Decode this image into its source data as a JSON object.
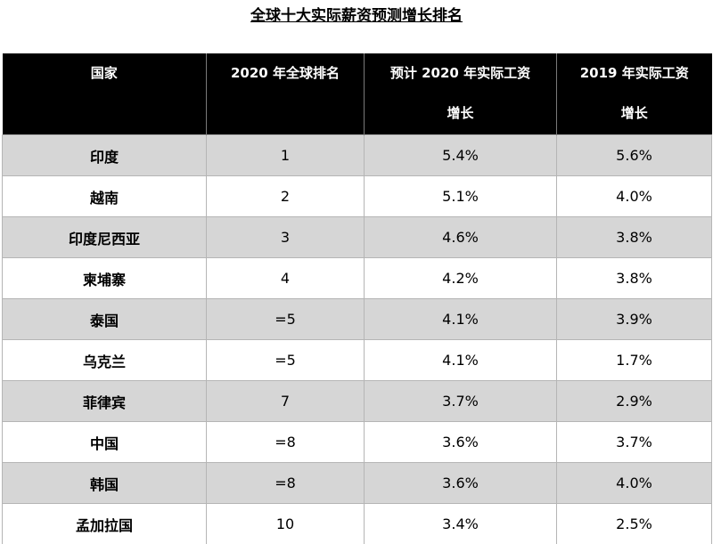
{
  "title": "全球十大实际薪资预测增长排名",
  "headers": {
    "country": "国家",
    "rank": "2020  年全球排名",
    "growth_2020_line1": "预计 2020 年实际工资",
    "growth_2020_line2": "增长",
    "growth_2019_line1": "2019 年实际工资",
    "growth_2019_line2": "增长"
  },
  "rows": [
    {
      "country": "印度",
      "rank": "1",
      "g2020": "5.4%",
      "g2019": "5.6%"
    },
    {
      "country": "越南",
      "rank": "2",
      "g2020": "5.1%",
      "g2019": "4.0%"
    },
    {
      "country": "印度尼西亚",
      "rank": "3",
      "g2020": "4.6%",
      "g2019": "3.8%"
    },
    {
      "country": "柬埔寨",
      "rank": "4",
      "g2020": "4.2%",
      "g2019": "3.8%"
    },
    {
      "country": "泰国",
      "rank": "=5",
      "g2020": "4.1%",
      "g2019": "3.9%"
    },
    {
      "country": "乌克兰",
      "rank": "=5",
      "g2020": "4.1%",
      "g2019": "1.7%"
    },
    {
      "country": "菲律宾",
      "rank": "7",
      "g2020": "3.7%",
      "g2019": "2.9%"
    },
    {
      "country": "中国",
      "rank": "=8",
      "g2020": "3.6%",
      "g2019": "3.7%"
    },
    {
      "country": "韩国",
      "rank": "=8",
      "g2020": "3.6%",
      "g2019": "4.0%"
    },
    {
      "country": "孟加拉国",
      "rank": "10",
      "g2020": "3.4%",
      "g2019": "2.5%"
    }
  ],
  "colors": {
    "header_bg": "#000000",
    "header_text": "#ffffff",
    "row_shaded": "#d6d6d6",
    "row_plain": "#ffffff"
  }
}
